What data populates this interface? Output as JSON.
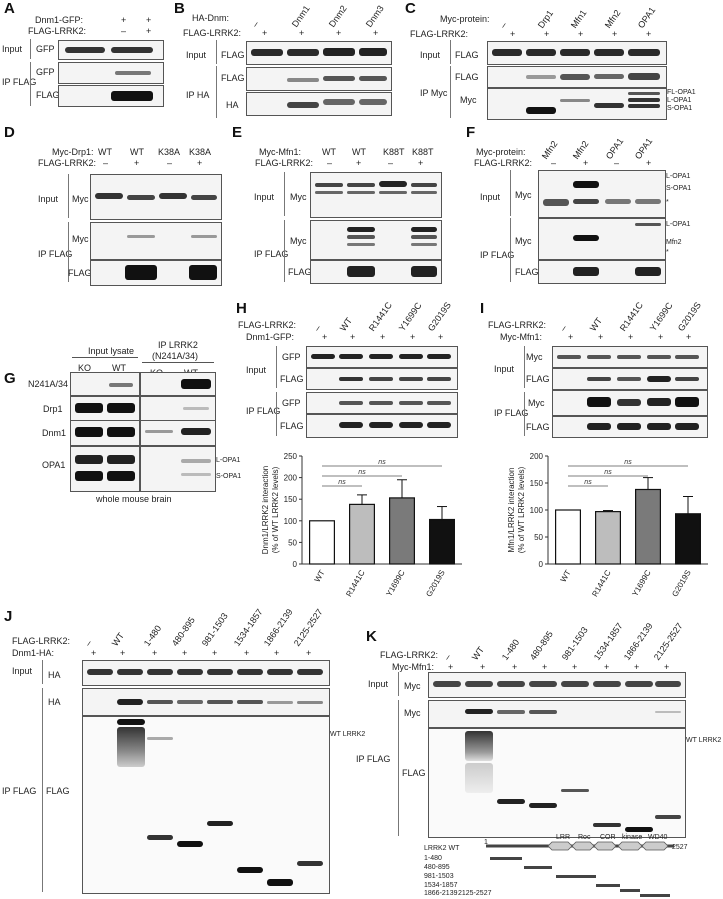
{
  "panels": {
    "A": {
      "letter": "A",
      "rows": [
        {
          "label": "Dnm1-GFP:",
          "vals": [
            "+",
            "+"
          ]
        },
        {
          "label": "FLAG-LRRK2:",
          "vals": [
            "–",
            "+"
          ]
        }
      ],
      "input_label": "Input",
      "ip_label": "IP FLAG",
      "blots": [
        "GFP",
        "GFP",
        "FLAG"
      ]
    },
    "B": {
      "letter": "B",
      "row1_label": "HA-Dnm:",
      "lanes": [
        "–",
        "Dnm1",
        "Dnm2",
        "Dnm3"
      ],
      "row2_label": "FLAG-LRRK2:",
      "row2_vals": [
        "+",
        "+",
        "+",
        "+"
      ],
      "input_label": "Input",
      "ip_label": "IP HA",
      "blots": [
        "FLAG",
        "FLAG",
        "HA"
      ]
    },
    "C": {
      "letter": "C",
      "row1_label": "Myc-protein:",
      "lanes": [
        "–",
        "Drp1",
        "Mfn1",
        "Mfn2",
        "OPA1"
      ],
      "row2_label": "FLAG-LRRK2:",
      "row2_vals": [
        "+",
        "+",
        "+",
        "+",
        "+"
      ],
      "input_label": "Input",
      "ip_label": "IP Myc",
      "blots": [
        "FLAG",
        "FLAG",
        "Myc"
      ],
      "annotations": [
        "FL-OPA1",
        "L-OPA1",
        "S-OPA1"
      ]
    },
    "D": {
      "letter": "D",
      "row1_label": "Myc-Drp1:",
      "lanes": [
        "WT",
        "WT",
        "K38A",
        "K38A"
      ],
      "row2_label": "FLAG-LRRK2:",
      "row2_vals": [
        "–",
        "+",
        "–",
        "+"
      ],
      "input_label": "Input",
      "ip_label": "IP FLAG",
      "blots": [
        "Myc",
        "Myc",
        "FLAG"
      ]
    },
    "E": {
      "letter": "E",
      "row1_label": "Myc-Mfn1:",
      "lanes": [
        "WT",
        "WT",
        "K88T",
        "K88T"
      ],
      "row2_label": "FLAG-LRRK2:",
      "row2_vals": [
        "–",
        "+",
        "–",
        "+"
      ],
      "input_label": "Input",
      "ip_label": "IP FLAG",
      "blots": [
        "Myc",
        "Myc",
        "FLAG"
      ]
    },
    "F": {
      "letter": "F",
      "row1_label": "Myc-protein:",
      "lanes": [
        "Mfn2",
        "Mfn2",
        "OPA1",
        "OPA1"
      ],
      "row2_label": "FLAG-LRRK2:",
      "row2_vals": [
        "–",
        "+",
        "–",
        "+"
      ],
      "input_label": "Input",
      "ip_label": "IP FLAG",
      "blots": [
        "Myc",
        "Myc",
        "FLAG"
      ],
      "annotations": [
        "L-OPA1",
        "S-OPA1",
        "*",
        "L-OPA1",
        "Mfn2",
        "*"
      ]
    },
    "G": {
      "letter": "G",
      "header1": "Input lysate",
      "header2": "IP LRRK2",
      "header2b": "(N241A/34)",
      "lanes": [
        "KO",
        "WT",
        "KO",
        "WT"
      ],
      "blots": [
        "N241A/34",
        "Drp1",
        "Dnm1",
        "OPA1"
      ],
      "annotations": [
        "L-OPA1",
        "S-OPA1"
      ],
      "caption": "whole mouse brain"
    },
    "H": {
      "letter": "H",
      "row1_label": "FLAG-LRRK2:",
      "lanes": [
        "–",
        "WT",
        "R1441C",
        "Y1699C",
        "G2019S"
      ],
      "row2_label": "Dnm1-GFP:",
      "row2_vals": [
        "+",
        "+",
        "+",
        "+",
        "+"
      ],
      "input_label": "Input",
      "ip_label": "IP FLAG",
      "blots": [
        "GFP",
        "FLAG",
        "GFP",
        "FLAG"
      ]
    },
    "I": {
      "letter": "I",
      "row1_label": "FLAG-LRRK2:",
      "lanes": [
        "–",
        "WT",
        "R1441C",
        "Y1699C",
        "G2019S"
      ],
      "row2_label": "Myc-Mfn1:",
      "row2_vals": [
        "+",
        "+",
        "+",
        "+",
        "+"
      ],
      "input_label": "Input",
      "ip_label": "IP FLAG",
      "blots": [
        "Myc",
        "FLAG",
        "Myc",
        "FLAG"
      ]
    },
    "J": {
      "letter": "J",
      "row1_label": "FLAG-LRRK2:",
      "lanes": [
        "–",
        "WT",
        "1-480",
        "480-895",
        "981-1503",
        "1534-1857",
        "1866-2139",
        "2125-2527"
      ],
      "row2_label": "Dnm1-HA:",
      "row2_vals": [
        "+",
        "+",
        "+",
        "+",
        "+",
        "+",
        "+",
        "+"
      ],
      "input_label": "Input",
      "ip_label": "IP FLAG",
      "blots": [
        "HA",
        "HA",
        "FLAG"
      ],
      "annotations": [
        "WT LRRK2"
      ]
    },
    "K": {
      "letter": "K",
      "row1_label": "FLAG-LRRK2:",
      "lanes": [
        "–",
        "WT",
        "1-480",
        "480-895",
        "981-1503",
        "1534-1857",
        "1866-2139",
        "2125-2527"
      ],
      "row2_label": "Myc-Mfn1:",
      "row2_vals": [
        "+",
        "+",
        "+",
        "+",
        "+",
        "+",
        "+",
        "+"
      ],
      "input_label": "Input",
      "ip_label": "IP FLAG",
      "blots": [
        "Myc",
        "Myc",
        "FLAG"
      ],
      "annotations": [
        "WT LRRK2"
      ],
      "domain_map": {
        "start": "1",
        "end": "2527",
        "domains": [
          "LRR",
          "Roc",
          "COR",
          "kinase",
          "WD40"
        ],
        "constructs": [
          "LRRK2 WT",
          "1-480",
          "480-895",
          "981-1503",
          "1534-1857",
          "1866-2139",
          "2125-2527"
        ]
      }
    }
  },
  "chart_data": [
    {
      "type": "bar",
      "panel": "H",
      "categories": [
        "WT",
        "R1441C",
        "Y1699C",
        "G2019S"
      ],
      "values": [
        100,
        138,
        153,
        103
      ],
      "errors": [
        0,
        22,
        42,
        30
      ],
      "ylabel": "Dnm1/LRRK2 interaction (% of WT LRRK2 levels)",
      "ylim": [
        0,
        250
      ],
      "yticks": [
        0,
        50,
        100,
        150,
        200,
        250
      ],
      "significance": [
        "ns",
        "ns",
        "ns"
      ],
      "colors": [
        "#ffffff",
        "#bdbdbd",
        "#7a7a7a",
        "#111111"
      ]
    },
    {
      "type": "bar",
      "panel": "I",
      "categories": [
        "WT",
        "R1441C",
        "Y1699C",
        "G2019S"
      ],
      "values": [
        100,
        97,
        138,
        93
      ],
      "errors": [
        0,
        2,
        22,
        32
      ],
      "ylabel": "Mfn1/LRRK2 interaction (% of WT LRRK2 levels)",
      "ylim": [
        0,
        200
      ],
      "yticks": [
        0,
        50,
        100,
        150,
        200
      ],
      "significance": [
        "ns",
        "ns",
        "ns"
      ],
      "colors": [
        "#ffffff",
        "#bdbdbd",
        "#7a7a7a",
        "#111111"
      ]
    }
  ]
}
